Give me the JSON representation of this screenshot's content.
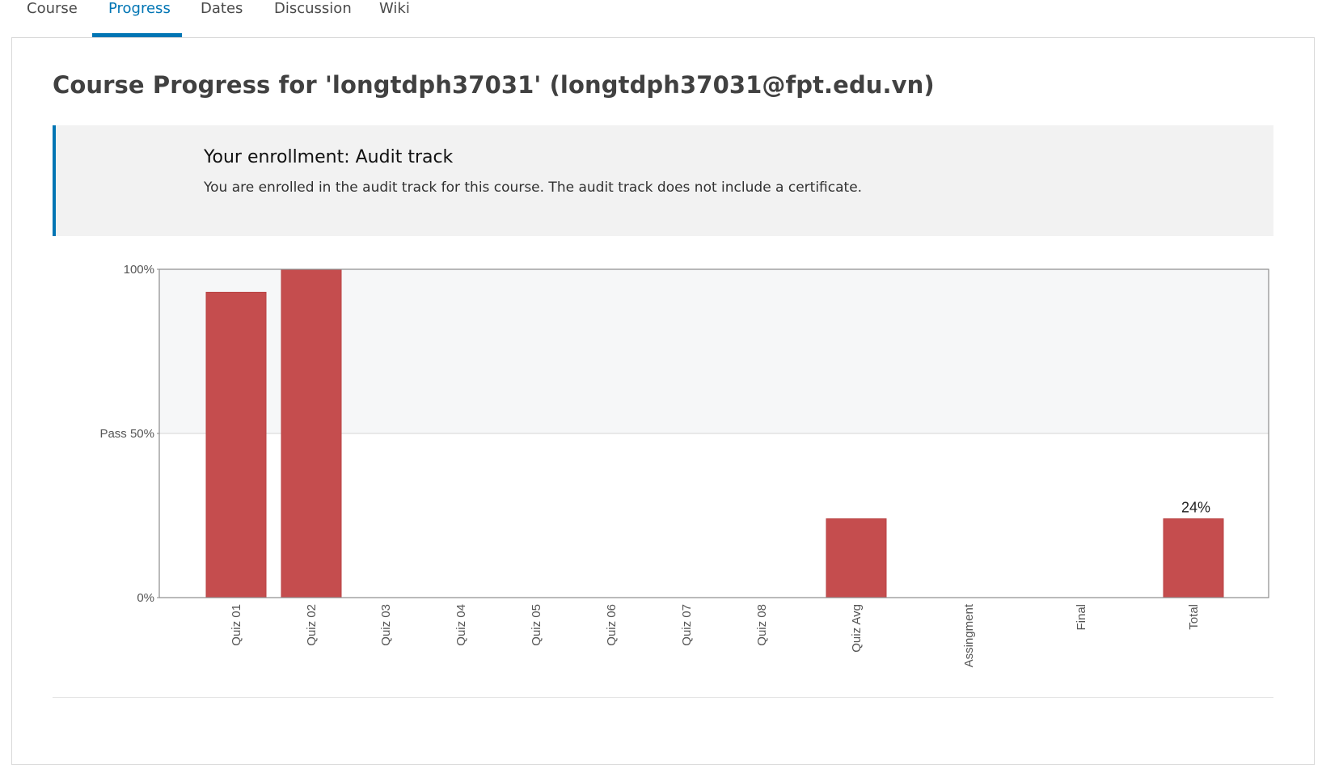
{
  "tabs": [
    {
      "label": "Course",
      "active": false
    },
    {
      "label": "Progress",
      "active": true
    },
    {
      "label": "Dates",
      "active": false
    },
    {
      "label": "Discussion",
      "active": false
    },
    {
      "label": "Wiki",
      "active": false
    }
  ],
  "page_title": "Course Progress for 'longtdph37031' (longtdph37031@fpt.edu.vn)",
  "enrollment": {
    "title": "Your enrollment: Audit track",
    "description": "You are enrolled in the audit track for this course. The audit track does not include a certificate."
  },
  "colors": {
    "accent": "#0075b4",
    "bar": "#c54d4e",
    "pass_band": "#f6f7f8"
  },
  "chart_data": {
    "type": "bar",
    "categories": [
      "Quiz 01",
      "Quiz 02",
      "Quiz 03",
      "Quiz 04",
      "Quiz 05",
      "Quiz 06",
      "Quiz 07",
      "Quiz 08",
      "Quiz Avg",
      "Assingment",
      "Final",
      "Total"
    ],
    "values": [
      93,
      100,
      0,
      0,
      0,
      0,
      0,
      0,
      24,
      0,
      0,
      24
    ],
    "ylim": [
      0,
      100
    ],
    "y_ticks": [
      {
        "value": 100,
        "label": "100%"
      },
      {
        "value": 50,
        "label": "Pass 50%"
      },
      {
        "value": 0,
        "label": "0%"
      }
    ],
    "pass_threshold": 50,
    "annotations": [
      {
        "category": "Total",
        "label": "24%"
      }
    ],
    "grid": false,
    "legend": "none"
  }
}
